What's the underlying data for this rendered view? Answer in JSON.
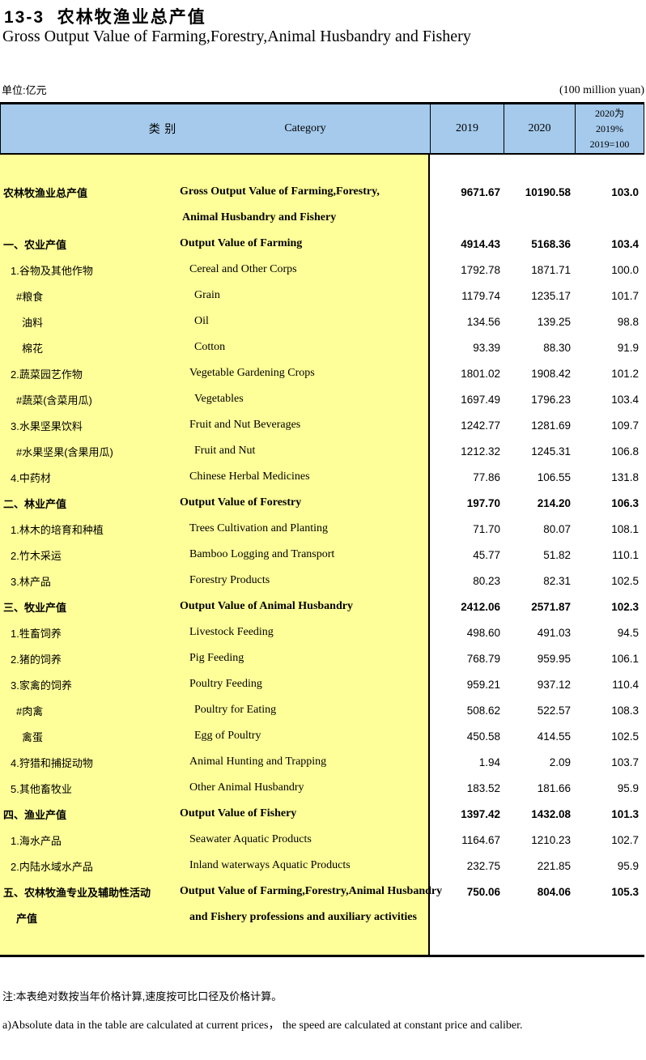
{
  "page": {
    "title_cn": "13-3  农林牧渔业总产值",
    "title_en": "Gross Output Value of Farming,Forestry,Animal Husbandry and Fishery",
    "unit_cn": "单位:亿元",
    "unit_en": "(100 million yuan)",
    "note_cn": "注:本表绝对数按当年价格计算,速度按可比口径及价格计算。",
    "note_en": "a)Absolute data in the table are calculated at current prices， the speed are calculated at constant price and caliber."
  },
  "table": {
    "colors": {
      "header_bg": "#A5CAEC",
      "body_left_bg": "#FFFF99"
    },
    "header": {
      "col_cn": "类 别",
      "col_en": "Category",
      "col_2019": "2019",
      "col_2020": "2020",
      "col_pct_lines": [
        "2020为",
        "2019%",
        "2019=100"
      ]
    },
    "rows": [
      {
        "cn": "农林牧渔业总产值",
        "en": "Gross Output Value of Farming,Forestry,",
        "y19": "9671.67",
        "y20": "10190.58",
        "pct": "103.0",
        "bold": true,
        "ci": 0,
        "ei": 0
      },
      {
        "cn": "",
        "en": "Animal Husbandry and Fishery",
        "y19": "",
        "y20": "",
        "pct": "",
        "bold": true,
        "ci": 0,
        "ei": 1
      },
      {
        "cn": "一、农业产值",
        "en": "Output Value of Farming",
        "y19": "4914.43",
        "y20": "5168.36",
        "pct": "103.4",
        "bold": true,
        "ci": 0,
        "ei": 0
      },
      {
        "cn": "1.谷物及其他作物",
        "en": "Cereal and Other Corps",
        "y19": "1792.78",
        "y20": "1871.71",
        "pct": "100.0",
        "bold": false,
        "ci": 1,
        "ei": 2
      },
      {
        "cn": "#粮食",
        "en": "Grain",
        "y19": "1179.74",
        "y20": "1235.17",
        "pct": "101.7",
        "bold": false,
        "ci": 2,
        "ei": 3
      },
      {
        "cn": "油料",
        "en": "Oil",
        "y19": "134.56",
        "y20": "139.25",
        "pct": "98.8",
        "bold": false,
        "ci": 3,
        "ei": 3
      },
      {
        "cn": "棉花",
        "en": "Cotton",
        "y19": "93.39",
        "y20": "88.30",
        "pct": "91.9",
        "bold": false,
        "ci": 3,
        "ei": 3
      },
      {
        "cn": "2.蔬菜园艺作物",
        "en": "Vegetable Gardening Crops",
        "y19": "1801.02",
        "y20": "1908.42",
        "pct": "101.2",
        "bold": false,
        "ci": 1,
        "ei": 2
      },
      {
        "cn": "#蔬菜(含菜用瓜)",
        "en": "Vegetables",
        "y19": "1697.49",
        "y20": "1796.23",
        "pct": "103.4",
        "bold": false,
        "ci": 2,
        "ei": 3
      },
      {
        "cn": "3.水果坚果饮料",
        "en": "Fruit and Nut Beverages",
        "y19": "1242.77",
        "y20": "1281.69",
        "pct": "109.7",
        "bold": false,
        "ci": 1,
        "ei": 2
      },
      {
        "cn": "#水果坚果(含果用瓜)",
        "en": "Fruit and Nut",
        "y19": "1212.32",
        "y20": "1245.31",
        "pct": "106.8",
        "bold": false,
        "ci": 2,
        "ei": 3
      },
      {
        "cn": "4.中药材",
        "en": "Chinese Herbal Medicines",
        "y19": "77.86",
        "y20": "106.55",
        "pct": "131.8",
        "bold": false,
        "ci": 1,
        "ei": 2
      },
      {
        "cn": "二、林业产值",
        "en": "Output Value of Forestry",
        "y19": "197.70",
        "y20": "214.20",
        "pct": "106.3",
        "bold": true,
        "ci": 0,
        "ei": 0
      },
      {
        "cn": "1.林木的培育和种植",
        "en": "Trees Cultivation and Planting",
        "y19": "71.70",
        "y20": "80.07",
        "pct": "108.1",
        "bold": false,
        "ci": 1,
        "ei": 2
      },
      {
        "cn": "2.竹木采运",
        "en": "Bamboo Logging and Transport",
        "y19": "45.77",
        "y20": "51.82",
        "pct": "110.1",
        "bold": false,
        "ci": 1,
        "ei": 2
      },
      {
        "cn": "3.林产品",
        "en": "Forestry Products",
        "y19": "80.23",
        "y20": "82.31",
        "pct": "102.5",
        "bold": false,
        "ci": 1,
        "ei": 2
      },
      {
        "cn": "三、牧业产值",
        "en": "Output Value of Animal Husbandry",
        "y19": "2412.06",
        "y20": "2571.87",
        "pct": "102.3",
        "bold": true,
        "ci": 0,
        "ei": 0
      },
      {
        "cn": "1.牲畜饲养",
        "en": "Livestock Feeding",
        "y19": "498.60",
        "y20": "491.03",
        "pct": "94.5",
        "bold": false,
        "ci": 1,
        "ei": 2
      },
      {
        "cn": "2.猪的饲养",
        "en": "Pig Feeding",
        "y19": "768.79",
        "y20": "959.95",
        "pct": "106.1",
        "bold": false,
        "ci": 1,
        "ei": 2
      },
      {
        "cn": "3.家禽的饲养",
        "en": "Poultry Feeding",
        "y19": "959.21",
        "y20": "937.12",
        "pct": "110.4",
        "bold": false,
        "ci": 1,
        "ei": 2
      },
      {
        "cn": "#肉禽",
        "en": "Poultry for Eating",
        "y19": "508.62",
        "y20": "522.57",
        "pct": "108.3",
        "bold": false,
        "ci": 2,
        "ei": 3
      },
      {
        "cn": "禽蛋",
        "en": "Egg of Poultry",
        "y19": "450.58",
        "y20": "414.55",
        "pct": "102.5",
        "bold": false,
        "ci": 3,
        "ei": 3
      },
      {
        "cn": "4.狩猎和捕捉动物",
        "en": "Animal Hunting and Trapping",
        "y19": "1.94",
        "y20": "2.09",
        "pct": "103.7",
        "bold": false,
        "ci": 1,
        "ei": 2
      },
      {
        "cn": "5.其他畜牧业",
        "en": "Other Animal Husbandry",
        "y19": "183.52",
        "y20": "181.66",
        "pct": "95.9",
        "bold": false,
        "ci": 1,
        "ei": 2
      },
      {
        "cn": "四、渔业产值",
        "en": "Output Value of Fishery",
        "y19": "1397.42",
        "y20": "1432.08",
        "pct": "101.3",
        "bold": true,
        "ci": 0,
        "ei": 0
      },
      {
        "cn": "1.海水产品",
        "en": "Seawater Aquatic Products",
        "y19": "1164.67",
        "y20": "1210.23",
        "pct": "102.7",
        "bold": false,
        "ci": 1,
        "ei": 2
      },
      {
        "cn": "2.内陆水域水产品",
        "en": "Inland waterways Aquatic Products",
        "y19": "232.75",
        "y20": "221.85",
        "pct": "95.9",
        "bold": false,
        "ci": 1,
        "ei": 2
      },
      {
        "cn": "五、农林牧渔专业及辅助性活动",
        "en": "Output Value of Farming,Forestry,Animal Husbandry",
        "y19": "750.06",
        "y20": "804.06",
        "pct": "105.3",
        "bold": true,
        "ci": 0,
        "ei": 0
      },
      {
        "cn": "产值",
        "en": "and Fishery professions and auxiliary activities",
        "y19": "",
        "y20": "",
        "pct": "",
        "bold": true,
        "ci": 2,
        "ei": 2
      }
    ]
  }
}
